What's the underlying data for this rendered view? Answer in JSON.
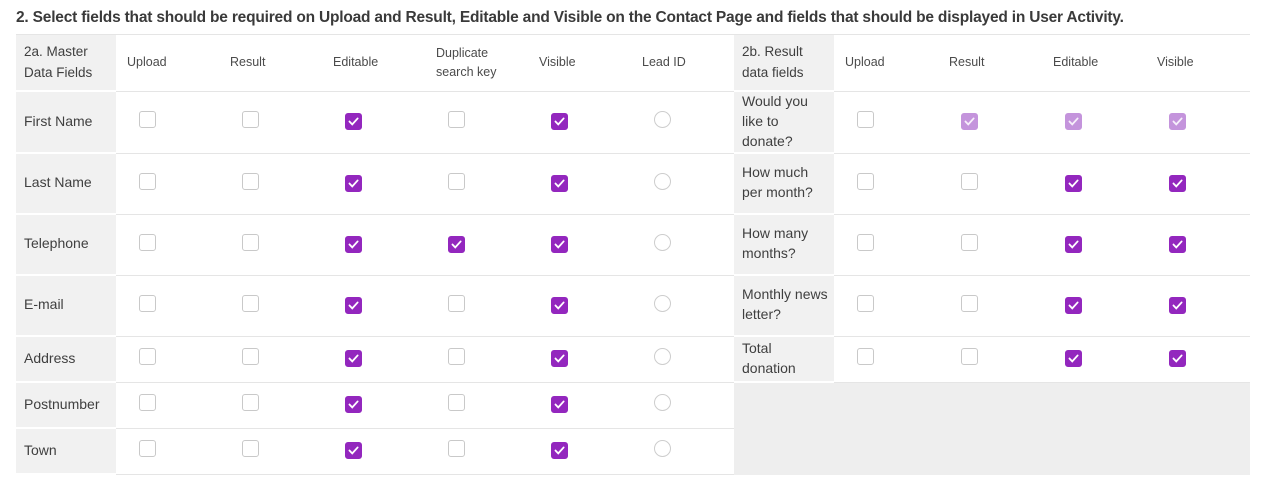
{
  "title": "2. Select fields that should be required on Upload and Result, Editable and Visible on the Contact Page and fields that should be displayed in User Activity.",
  "colors": {
    "checked": "#9327BE",
    "checked_disabled": "#C494DC"
  },
  "table": {
    "left": {
      "header": "2a. Master Data Fields",
      "columns": [
        {
          "label": "Upload",
          "type": "checkbox"
        },
        {
          "label": "Result",
          "type": "checkbox"
        },
        {
          "label": "Editable",
          "type": "checkbox"
        },
        {
          "label": "Duplicate search key",
          "type": "checkbox"
        },
        {
          "label": "Visible",
          "type": "checkbox"
        },
        {
          "label": "Lead ID",
          "type": "radio"
        }
      ],
      "rows": [
        {
          "label": "First Name",
          "states": [
            "unchecked",
            "unchecked",
            "checked",
            "unchecked",
            "checked",
            "unselected"
          ]
        },
        {
          "label": "Last Name",
          "states": [
            "unchecked",
            "unchecked",
            "checked",
            "unchecked",
            "checked",
            "unselected"
          ]
        },
        {
          "label": "Telephone",
          "states": [
            "unchecked",
            "unchecked",
            "checked",
            "checked",
            "checked",
            "unselected"
          ]
        },
        {
          "label": "E-mail",
          "states": [
            "unchecked",
            "unchecked",
            "checked",
            "unchecked",
            "checked",
            "unselected"
          ]
        },
        {
          "label": "Address",
          "states": [
            "unchecked",
            "unchecked",
            "checked",
            "unchecked",
            "checked",
            "unselected"
          ]
        },
        {
          "label": "Postnumber",
          "states": [
            "unchecked",
            "unchecked",
            "checked",
            "unchecked",
            "checked",
            "unselected"
          ]
        },
        {
          "label": "Town",
          "states": [
            "unchecked",
            "unchecked",
            "checked",
            "unchecked",
            "checked",
            "unselected"
          ]
        }
      ]
    },
    "right": {
      "header": "2b. Result data fields",
      "columns": [
        {
          "label": "Upload",
          "type": "checkbox"
        },
        {
          "label": "Result",
          "type": "checkbox"
        },
        {
          "label": "Editable",
          "type": "checkbox"
        },
        {
          "label": "Visible",
          "type": "checkbox"
        }
      ],
      "rows": [
        {
          "label": "Would you like to donate?",
          "states": [
            "unchecked",
            "checked-disabled",
            "checked-disabled",
            "checked-disabled"
          ]
        },
        {
          "label": "How much per month?",
          "states": [
            "unchecked",
            "unchecked",
            "checked",
            "checked"
          ]
        },
        {
          "label": "How many months?",
          "states": [
            "unchecked",
            "unchecked",
            "checked",
            "checked"
          ]
        },
        {
          "label": "Monthly news letter?",
          "states": [
            "unchecked",
            "unchecked",
            "checked",
            "checked"
          ]
        },
        {
          "label": "Total donation",
          "states": [
            "unchecked",
            "unchecked",
            "checked",
            "checked"
          ]
        }
      ]
    }
  }
}
